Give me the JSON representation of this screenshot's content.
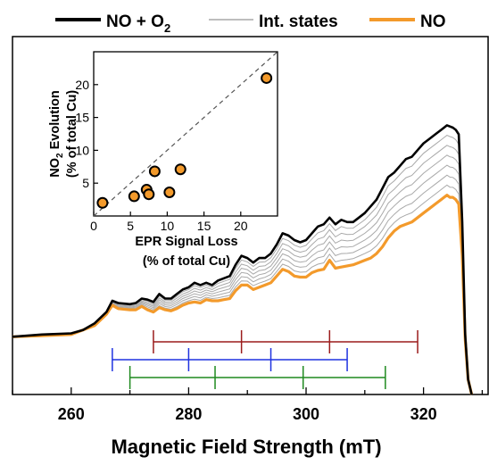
{
  "chart_data": [
    {
      "type": "line",
      "xlabel": "Magnetic Field Strength (mT)",
      "ylabel": "",
      "xlim": [
        250,
        331
      ],
      "xticks": [
        260,
        280,
        300,
        320
      ],
      "yaxis_ticks_shown": false,
      "grid": false,
      "legend": {
        "placement": "top",
        "entries": [
          {
            "label_parts": [
              "NO + O",
              "2"
            ],
            "color": "#000000",
            "role": "start"
          },
          {
            "label_parts": [
              "Int. states"
            ],
            "color": "#a9a9a9",
            "role": "intermediate"
          },
          {
            "label_parts": [
              "NO"
            ],
            "color": "#f39a2b",
            "role": "end"
          }
        ]
      },
      "intermediate_count": 6,
      "series_colors": {
        "start": "#000000",
        "intermediate": "#a9a9a9",
        "end": "#f39a2b"
      },
      "note_intensity": "arbitrary units, 0 = lowest shown level, 100 = highest shown level",
      "x": [
        250,
        255,
        260,
        262,
        264,
        266,
        267,
        268,
        270,
        271,
        272,
        273,
        274,
        275,
        276,
        277,
        278,
        279,
        280,
        281,
        282,
        283,
        284,
        285,
        286,
        287,
        288,
        289,
        290,
        291,
        292,
        293,
        294,
        295,
        296,
        297,
        298,
        299,
        300,
        301,
        302,
        303,
        304,
        305,
        306,
        307,
        308,
        309,
        310,
        311,
        312,
        313,
        314,
        315,
        316,
        317,
        318,
        319,
        320,
        321,
        322,
        323,
        323.5,
        324,
        324.5,
        325,
        325.5,
        326,
        326.6,
        327.1,
        327.6,
        328.2
      ],
      "start_series": [
        9,
        10,
        10.5,
        12,
        15,
        20,
        25,
        24,
        23.5,
        24,
        26,
        25.5,
        24.5,
        28,
        26,
        26,
        28,
        30,
        31,
        33,
        32,
        33,
        32,
        34,
        35,
        36,
        41,
        45,
        44,
        42,
        44,
        44,
        46,
        50,
        55,
        54,
        52,
        51,
        52,
        55,
        58,
        59,
        62,
        59,
        61,
        60,
        60,
        62,
        64,
        67,
        70,
        75,
        80,
        82,
        85,
        88,
        89,
        92,
        95,
        97,
        99,
        101,
        102,
        103,
        102.5,
        102,
        101,
        99,
        60,
        10,
        -10,
        -20
      ],
      "end_series": [
        9,
        9.5,
        10,
        12,
        14,
        19,
        23,
        21.5,
        21,
        21,
        22.5,
        21,
        20,
        22,
        21,
        20.5,
        21.5,
        23,
        24,
        24.5,
        24,
        25.5,
        25,
        25,
        25.5,
        26,
        29.5,
        32,
        32,
        30,
        31,
        32,
        33,
        36,
        39,
        38,
        36,
        35.5,
        35.5,
        37.5,
        38.5,
        39,
        43,
        39.5,
        40,
        40.5,
        41,
        42,
        43,
        44,
        46,
        49,
        53,
        56,
        58,
        59,
        60,
        62,
        64,
        66,
        68,
        70,
        71,
        72,
        71,
        71,
        70,
        68,
        45,
        8,
        -10,
        -20
      ],
      "x_axis_ticks_label": "Magnetic Field Strength (mT)",
      "stick_diagrams": [
        {
          "color": "#9b1c1c",
          "lines": [
            274,
            289,
            304,
            319
          ]
        },
        {
          "color": "#1f32e0",
          "lines": [
            267,
            280,
            294,
            307
          ]
        },
        {
          "color": "#1f8a1f",
          "lines": [
            270,
            284.5,
            299.5,
            313.5
          ]
        }
      ]
    },
    {
      "type": "scatter",
      "title": "",
      "xlabel_lines": [
        [
          "EPR Signal Loss"
        ],
        [
          "(% of total Cu)"
        ]
      ],
      "ylabel_lines": [
        [
          "NO",
          "2",
          " Evolution"
        ],
        [
          "(% of total Cu)"
        ]
      ],
      "xlim": [
        0,
        25
      ],
      "ylim": [
        0,
        25
      ],
      "xticks": [
        0,
        5,
        10,
        15,
        20
      ],
      "yticks": [
        5,
        10,
        15,
        20
      ],
      "grid": false,
      "points": [
        {
          "x": 1.2,
          "y": 2.0
        },
        {
          "x": 5.5,
          "y": 3.0
        },
        {
          "x": 7.2,
          "y": 4.0
        },
        {
          "x": 7.5,
          "y": 3.3
        },
        {
          "x": 8.3,
          "y": 6.8
        },
        {
          "x": 10.3,
          "y": 3.6
        },
        {
          "x": 11.8,
          "y": 7.1
        },
        {
          "x": 23.5,
          "y": 21.0
        }
      ],
      "reference_line": {
        "style": "dashed",
        "from": [
          0,
          0
        ],
        "to": [
          25,
          25
        ]
      },
      "marker_fill": "#f39a2b",
      "marker_edge": "#000000"
    }
  ]
}
